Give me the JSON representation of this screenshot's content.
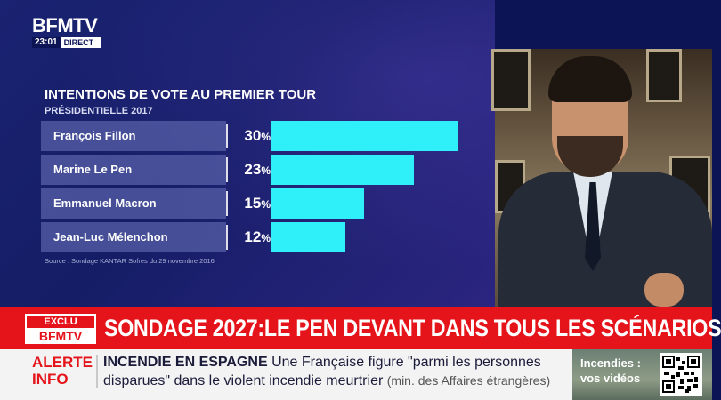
{
  "channel": {
    "logo": "BFMTV",
    "time": "23:01",
    "live": "DIRECT"
  },
  "chart_data": {
    "type": "bar",
    "title": "INTENTIONS DE VOTE AU PREMIER TOUR",
    "subtitle": "PRÉSIDENTIELLE 2017",
    "categories": [
      "François Fillon",
      "Marine Le Pen",
      "Emmanuel Macron",
      "Jean-Luc Mélenchon"
    ],
    "values": [
      30,
      23,
      15,
      12
    ],
    "value_labels": [
      "30",
      "23",
      "15",
      "12"
    ],
    "unit": "%",
    "source": "Source : Sondage KANTAR Sofres du 29 novembre 2016",
    "bar_color": "#2ff0f8"
  },
  "banner": {
    "badge_top": "EXCLU",
    "badge_bottom": "BFMTV",
    "headline": "SONDAGE 2027:LE PEN DEVANT DANS TOUS LES SCÉNARIOS",
    "color": "#e5141b"
  },
  "ticker": {
    "alert_line1": "ALERTE",
    "alert_line2": "INFO",
    "keyword": "INCENDIE EN ESPAGNE",
    "text": "Une Française figure \"parmi les personnes disparues\" dans le violent incendie meurtrier",
    "source_note": "(min. des Affaires étrangères)"
  },
  "promo": {
    "line1": "Incendies :",
    "line2": "vos vidéos"
  }
}
